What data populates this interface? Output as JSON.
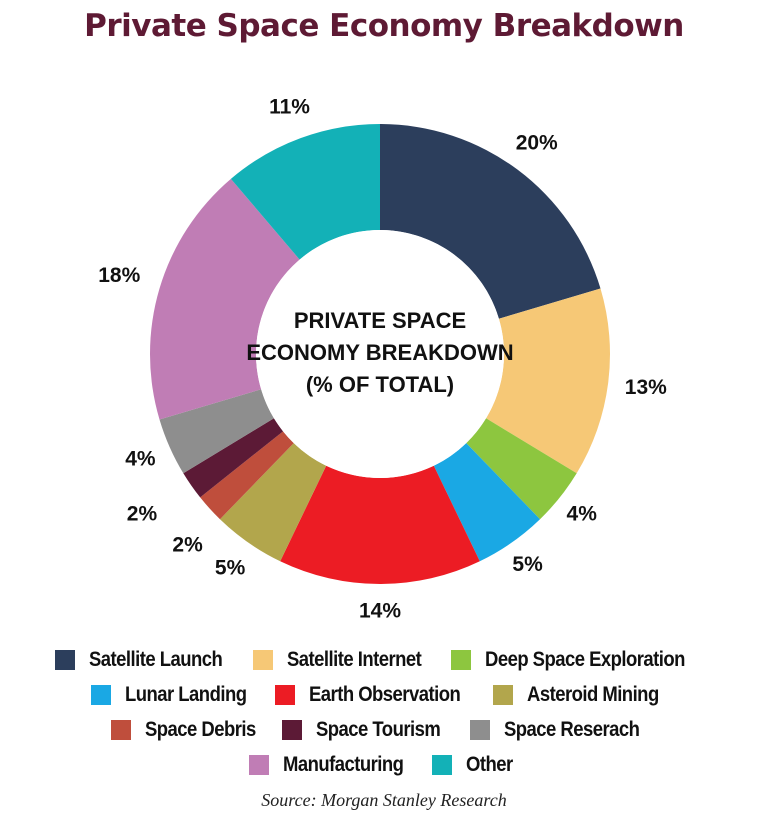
{
  "title": "Private Space Economy Breakdown",
  "center_label": [
    "PRIVATE SPACE",
    "ECONOMY BREAKDOWN",
    "(% OF TOTAL)"
  ],
  "source": "Source: Morgan Stanley Research",
  "chart_data": {
    "type": "pie",
    "variant": "donut",
    "title": "Private Space Economy Breakdown",
    "subtitle": "Private Space Economy Breakdown (% of Total)",
    "unit": "%",
    "start_angle_deg": 0,
    "direction": "clockwise",
    "categories": [
      "Satellite Launch",
      "Satellite Internet",
      "Deep Space Exploration",
      "Lunar Landing",
      "Earth Observation",
      "Asteroid Mining",
      "Space Debris",
      "Space Tourism",
      "Space Reserach",
      "Manufacturing",
      "Other"
    ],
    "values": [
      20,
      13,
      4,
      5,
      14,
      5,
      2,
      2,
      4,
      18,
      11
    ],
    "labels": [
      "20%",
      "13%",
      "4%",
      "5%",
      "14%",
      "5%",
      "2%",
      "2%",
      "4%",
      "18%",
      "11%"
    ],
    "colors": [
      "#2c3e5c",
      "#f6c876",
      "#8dc63f",
      "#1aa8e4",
      "#ec1c24",
      "#b2a64c",
      "#bf4e3c",
      "#5c1a36",
      "#8e8e8e",
      "#c07db5",
      "#13b1b7"
    ],
    "legend_position": "bottom",
    "source": "Morgan Stanley Research"
  },
  "legend": {
    "rows": [
      [
        0,
        1,
        2
      ],
      [
        3,
        4,
        5
      ],
      [
        6,
        7,
        8
      ],
      [
        9,
        10
      ]
    ]
  }
}
